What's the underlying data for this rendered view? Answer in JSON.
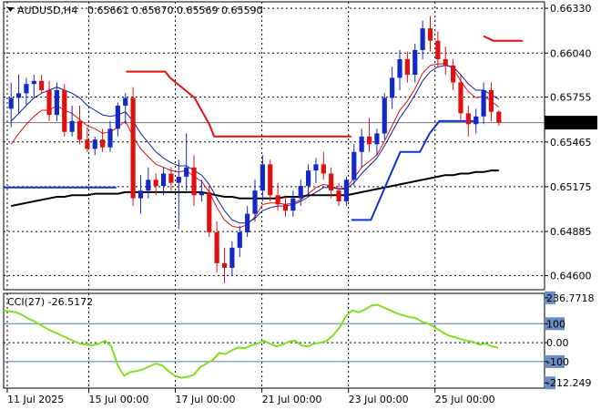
{
  "header": {
    "symbol": "AUDUSD,H4",
    "ohlc": "0.65661 0.65670 0.65569 0.65590"
  },
  "colors": {
    "bull": "#1428c8",
    "bear": "#e01010",
    "ema_fast": "#e01010",
    "ema_mid": "#1020a0",
    "ma_slow": "#000000",
    "stop_upper": "#e01010",
    "stop_lower": "#1030d0",
    "cci": "#80e020",
    "grid": "#000000",
    "price_tag_bg": "#000000",
    "price_tag_text": "#ffffff"
  },
  "chart_data": [
    {
      "type": "candlestick",
      "title": "AUDUSD,H4",
      "ylim": [
        0.6452,
        0.6636
      ],
      "y_ticks": [
        "0.66330",
        "0.66040",
        "0.65755",
        "0.65465",
        "0.65175",
        "0.64885",
        "0.64600"
      ],
      "x_ticks": [
        "11 Jul 2025",
        "15 Jul 00:00",
        "17 Jul 00:00",
        "21 Jul 00:00",
        "23 Jul 00:00",
        "25 Jul 00:00"
      ],
      "last_price": "0.65590",
      "candles": [
        [
          0.6568,
          0.6585,
          0.6556,
          0.6575
        ],
        [
          0.6575,
          0.659,
          0.6565,
          0.6578
        ],
        [
          0.6578,
          0.6588,
          0.657,
          0.6584
        ],
        [
          0.6584,
          0.659,
          0.6575,
          0.6586
        ],
        [
          0.6586,
          0.659,
          0.6578,
          0.658
        ],
        [
          0.658,
          0.6586,
          0.656,
          0.6564
        ],
        [
          0.6564,
          0.6585,
          0.656,
          0.658
        ],
        [
          0.658,
          0.6584,
          0.655,
          0.6553
        ],
        [
          0.6553,
          0.657,
          0.655,
          0.656
        ],
        [
          0.656,
          0.657,
          0.6545,
          0.6548
        ],
        [
          0.6548,
          0.6556,
          0.654,
          0.6542
        ],
        [
          0.6542,
          0.655,
          0.6538,
          0.6548
        ],
        [
          0.6548,
          0.6555,
          0.654,
          0.6543
        ],
        [
          0.6543,
          0.656,
          0.654,
          0.6555
        ],
        [
          0.6555,
          0.6572,
          0.655,
          0.657
        ],
        [
          0.657,
          0.6578,
          0.6558,
          0.6575
        ],
        [
          0.6575,
          0.6582,
          0.6505,
          0.651
        ],
        [
          0.651,
          0.6525,
          0.65,
          0.6515
        ],
        [
          0.6515,
          0.653,
          0.651,
          0.6522
        ],
        [
          0.6522,
          0.6526,
          0.6512,
          0.6518
        ],
        [
          0.6518,
          0.653,
          0.6512,
          0.6526
        ],
        [
          0.6526,
          0.653,
          0.6515,
          0.652
        ],
        [
          0.652,
          0.6535,
          0.649,
          0.6524
        ],
        [
          0.6524,
          0.6552,
          0.6515,
          0.653
        ],
        [
          0.653,
          0.6538,
          0.6505,
          0.6512
        ],
        [
          0.6512,
          0.6522,
          0.6508,
          0.6514
        ],
        [
          0.6514,
          0.6518,
          0.6485,
          0.6488
        ],
        [
          0.6488,
          0.6495,
          0.6462,
          0.6468
        ],
        [
          0.6468,
          0.6478,
          0.6455,
          0.6465
        ],
        [
          0.6465,
          0.6482,
          0.646,
          0.6478
        ],
        [
          0.6478,
          0.6492,
          0.6472,
          0.6488
        ],
        [
          0.6488,
          0.6505,
          0.6485,
          0.65
        ],
        [
          0.65,
          0.6522,
          0.6495,
          0.6515
        ],
        [
          0.6515,
          0.6538,
          0.6508,
          0.6532
        ],
        [
          0.6532,
          0.6535,
          0.6508,
          0.6512
        ],
        [
          0.6512,
          0.652,
          0.6502,
          0.6506
        ],
        [
          0.6506,
          0.6512,
          0.6498,
          0.6502
        ],
        [
          0.6502,
          0.6515,
          0.6498,
          0.651
        ],
        [
          0.651,
          0.6522,
          0.6505,
          0.6518
        ],
        [
          0.6518,
          0.6532,
          0.6512,
          0.6528
        ],
        [
          0.6528,
          0.6536,
          0.652,
          0.6532
        ],
        [
          0.6532,
          0.654,
          0.6522,
          0.6526
        ],
        [
          0.6526,
          0.653,
          0.651,
          0.6515
        ],
        [
          0.6515,
          0.652,
          0.6505,
          0.6508
        ],
        [
          0.6508,
          0.6524,
          0.6505,
          0.6522
        ],
        [
          0.6522,
          0.6545,
          0.6518,
          0.654
        ],
        [
          0.654,
          0.6555,
          0.653,
          0.655
        ],
        [
          0.655,
          0.6562,
          0.654,
          0.6545
        ],
        [
          0.6545,
          0.6555,
          0.6538,
          0.6552
        ],
        [
          0.6552,
          0.6578,
          0.6548,
          0.6575
        ],
        [
          0.6575,
          0.6595,
          0.6568,
          0.6588
        ],
        [
          0.6588,
          0.6606,
          0.658,
          0.66
        ],
        [
          0.66,
          0.6605,
          0.6585,
          0.659
        ],
        [
          0.659,
          0.661,
          0.6585,
          0.6606
        ],
        [
          0.6606,
          0.6625,
          0.66,
          0.662
        ],
        [
          0.662,
          0.6628,
          0.6605,
          0.6612
        ],
        [
          0.6612,
          0.6618,
          0.6595,
          0.66
        ],
        [
          0.66,
          0.6608,
          0.659,
          0.6596
        ],
        [
          0.6596,
          0.66,
          0.658,
          0.6585
        ],
        [
          0.6585,
          0.659,
          0.656,
          0.6565
        ],
        [
          0.6565,
          0.657,
          0.655,
          0.6558
        ],
        [
          0.6558,
          0.6568,
          0.6552,
          0.6563
        ],
        [
          0.6563,
          0.6585,
          0.6558,
          0.658
        ],
        [
          0.658,
          0.6585,
          0.656,
          0.6566
        ],
        [
          0.6566,
          0.6567,
          0.6557,
          0.6559
        ]
      ],
      "series": [
        {
          "type": "line",
          "values": [
            0.6545,
            0.6552,
            0.6558,
            0.6563,
            0.6567,
            0.6567,
            0.657,
            0.6567,
            0.6565,
            0.6561,
            0.6557,
            0.6555,
            0.6552,
            0.6553,
            0.6556,
            0.656,
            0.655,
            0.6542,
            0.6537,
            0.6532,
            0.653,
            0.6528,
            0.6527,
            0.6528,
            0.6524,
            0.6521,
            0.6514,
            0.6504,
            0.6496,
            0.6492,
            0.6491,
            0.6493,
            0.6498,
            0.6506,
            0.6507,
            0.6507,
            0.6506,
            0.6507,
            0.6509,
            0.6513,
            0.6517,
            0.6519,
            0.6518,
            0.6516,
            0.6517,
            0.6523,
            0.653,
            0.6534,
            0.6538,
            0.6547,
            0.6557,
            0.6567,
            0.6573,
            0.6581,
            0.6591,
            0.6596,
            0.6597,
            0.6597,
            0.6594,
            0.6586,
            0.6579,
            0.6575,
            0.6576,
            0.6573,
            0.6569
          ]
        },
        {
          "type": "line",
          "values": [
            0.656,
            0.6565,
            0.657,
            0.6575,
            0.6578,
            0.658,
            0.6582,
            0.658,
            0.6578,
            0.6575,
            0.657,
            0.6567,
            0.6564,
            0.6563,
            0.6564,
            0.6566,
            0.656,
            0.6552,
            0.6546,
            0.654,
            0.6536,
            0.6533,
            0.6531,
            0.6531,
            0.6528,
            0.6525,
            0.6519,
            0.651,
            0.6502,
            0.6496,
            0.6494,
            0.6494,
            0.6497,
            0.6502,
            0.6504,
            0.6505,
            0.6505,
            0.6506,
            0.6508,
            0.6511,
            0.6514,
            0.6517,
            0.6517,
            0.6516,
            0.6516,
            0.652,
            0.6526,
            0.6531,
            0.6536,
            0.6544,
            0.6553,
            0.6562,
            0.6569,
            0.6577,
            0.6586,
            0.6592,
            0.6595,
            0.6596,
            0.6595,
            0.659,
            0.6584,
            0.658,
            0.658,
            0.6577,
            0.6574
          ]
        },
        {
          "type": "line",
          "values": [
            0.6505,
            0.6506,
            0.6507,
            0.6508,
            0.6509,
            0.651,
            0.6511,
            0.6511,
            0.6512,
            0.6512,
            0.6512,
            0.6513,
            0.6513,
            0.6513,
            0.6513,
            0.6514,
            0.6514,
            0.6514,
            0.6514,
            0.6514,
            0.6514,
            0.6514,
            0.6514,
            0.6514,
            0.6514,
            0.6514,
            0.6513,
            0.6512,
            0.6511,
            0.6511,
            0.651,
            0.651,
            0.651,
            0.651,
            0.651,
            0.651,
            0.6511,
            0.6511,
            0.6511,
            0.6512,
            0.6512,
            0.6512,
            0.6512,
            0.6512,
            0.6512,
            0.6513,
            0.6514,
            0.6515,
            0.6516,
            0.6517,
            0.6518,
            0.6519,
            0.652,
            0.6521,
            0.6522,
            0.6523,
            0.6524,
            0.6525,
            0.6525,
            0.6526,
            0.6526,
            0.6527,
            0.6527,
            0.6528,
            0.6528
          ]
        },
        {
          "type": "step",
          "points": [
            [
              0,
              0.6517
            ],
            [
              23,
              0.6517
            ],
            null,
            [
              25,
              0.6592
            ],
            [
              33,
              0.6592
            ],
            [
              34,
              0.6588
            ],
            [
              39,
              0.6575
            ],
            [
              42,
              0.6558
            ],
            [
              43,
              0.655
            ],
            [
              71,
              0.655
            ],
            null,
            [
              71,
              0.6496
            ],
            [
              75,
              0.6496
            ],
            [
              78,
              0.6518
            ],
            [
              81,
              0.654
            ],
            [
              85,
              0.654
            ],
            [
              87,
              0.6552
            ],
            [
              89,
              0.656
            ],
            [
              97,
              0.656
            ],
            null,
            [
              98,
              0.6615
            ],
            [
              100,
              0.6612
            ],
            [
              106,
              0.6612
            ]
          ]
        }
      ],
      "candle_index_span": [
        0,
        106
      ]
    },
    {
      "type": "line",
      "title": "CCI(27) -26.5172",
      "ylim": [
        -240,
        260
      ],
      "y_ticks": [
        "236.7718",
        "100",
        "0.00",
        "-100",
        "-212.249"
      ],
      "levels": [
        100,
        0,
        -100
      ],
      "values": [
        170,
        165,
        160,
        145,
        125,
        110,
        90,
        70,
        55,
        40,
        25,
        10,
        -5,
        -10,
        -15,
        -5,
        10,
        -20,
        -120,
        -175,
        -155,
        -150,
        -140,
        -125,
        -110,
        -120,
        -150,
        -175,
        -185,
        -180,
        -170,
        -130,
        -110,
        -90,
        -55,
        -60,
        -40,
        -25,
        -30,
        -15,
        -5,
        10,
        -5,
        -20,
        -10,
        5,
        10,
        -15,
        -20,
        -5,
        0,
        10,
        40,
        80,
        140,
        170,
        160,
        175,
        195,
        200,
        185,
        170,
        155,
        145,
        135,
        130,
        110,
        100,
        80,
        60,
        40,
        30,
        20,
        10,
        5,
        -10,
        -5,
        -20,
        -26.5
      ]
    }
  ]
}
